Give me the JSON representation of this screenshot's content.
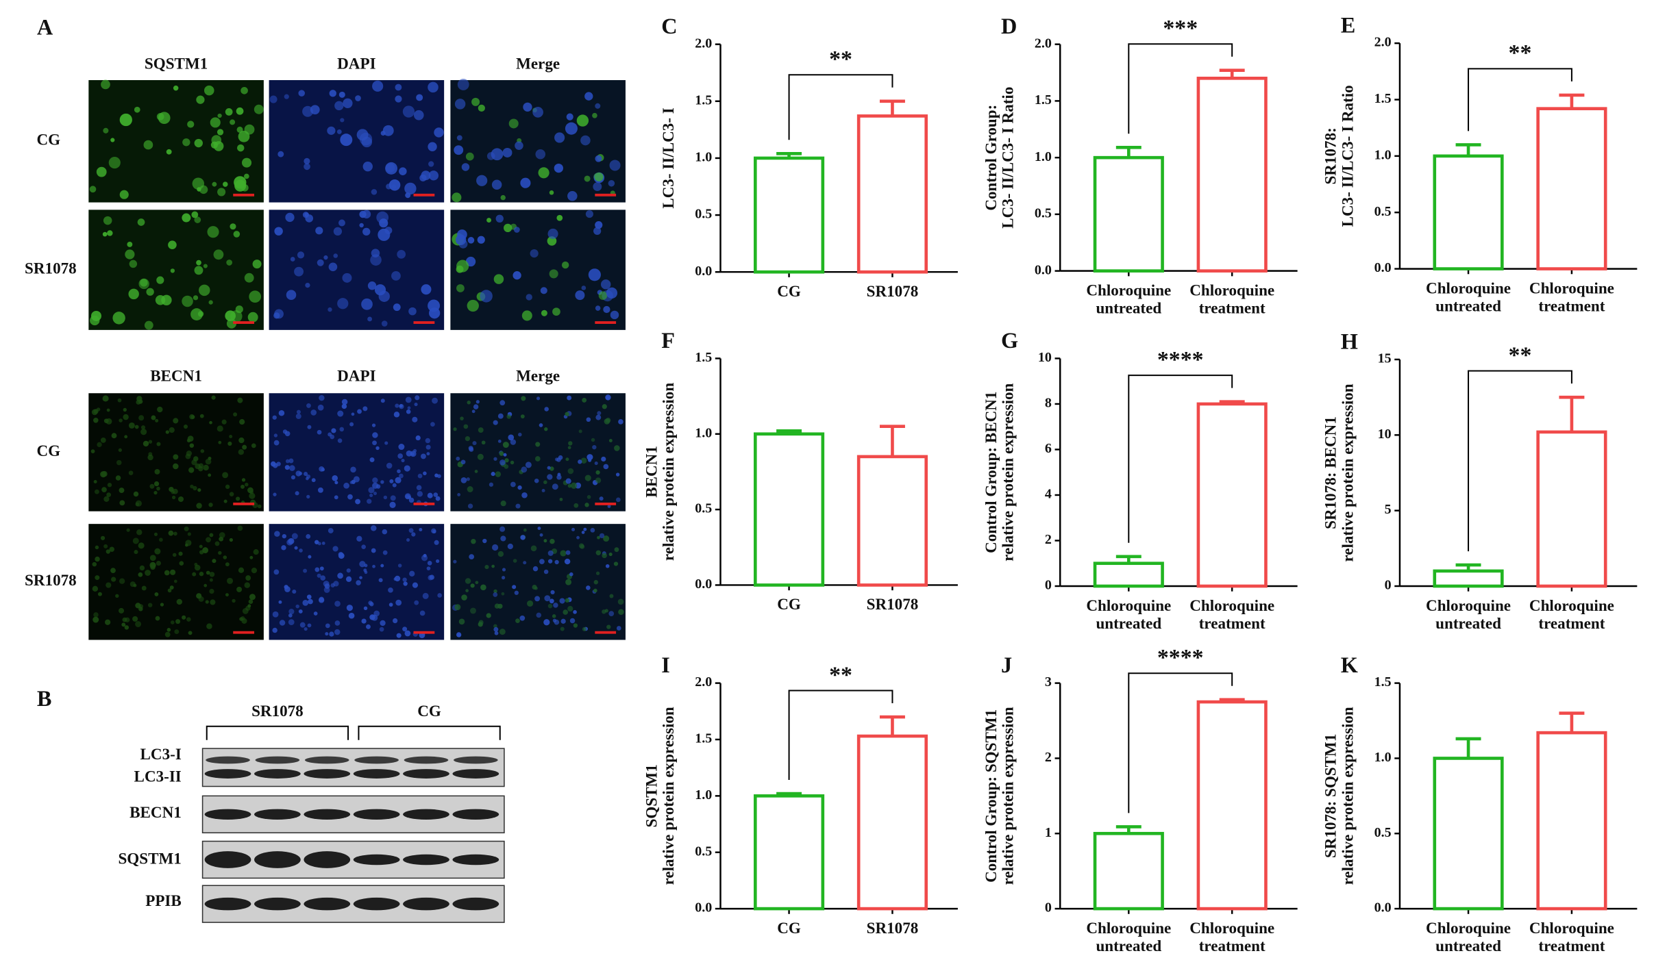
{
  "panel_a": {
    "label": "A",
    "blocks": [
      {
        "columns": [
          "SQSTM1",
          "DAPI",
          "Merge"
        ],
        "rows": [
          "CG",
          "SR1078"
        ]
      },
      {
        "columns": [
          "BECN1",
          "DAPI",
          "Merge"
        ],
        "rows": [
          "CG",
          "SR1078"
        ]
      }
    ]
  },
  "panel_b": {
    "label": "B",
    "groups": [
      "SR1078",
      "CG"
    ],
    "rows": [
      "LC3-I",
      "LC3-II",
      "BECN1",
      "SQSTM1",
      "PPIB"
    ]
  },
  "chart_data": [
    {
      "type": "bar",
      "panel_label": "C",
      "ylabel": [
        "LC3- II/LC3- I"
      ],
      "categories": [
        "CG",
        "SR1078"
      ],
      "values": [
        1.0,
        1.37
      ],
      "errors": [
        0.04,
        0.13
      ],
      "colors": [
        "#22b522",
        "#f04a4a"
      ],
      "ylim": [
        0,
        2
      ],
      "yticks": [
        {
          "value": 0,
          "label": "0.0"
        },
        {
          "value": 0.5,
          "label": "0.5"
        },
        {
          "value": 1,
          "label": "1.0"
        },
        {
          "value": 1.5,
          "label": "1.5"
        },
        {
          "value": 2,
          "label": "2.0"
        }
      ],
      "significance": "**"
    },
    {
      "type": "bar",
      "panel_label": "D",
      "ylabel": [
        "Control Group:",
        "LC3- II/LC3- I Ratio"
      ],
      "categories": [
        "Chloroquine untreated",
        "Chloroquine treatment"
      ],
      "values": [
        1.0,
        1.7
      ],
      "errors": [
        0.09,
        0.07
      ],
      "colors": [
        "#22b522",
        "#f04a4a"
      ],
      "ylim": [
        0,
        2
      ],
      "yticks": [
        {
          "value": 0,
          "label": "0.0"
        },
        {
          "value": 0.5,
          "label": "0.5"
        },
        {
          "value": 1,
          "label": "1.0"
        },
        {
          "value": 1.5,
          "label": "1.5"
        },
        {
          "value": 2,
          "label": "2.0"
        }
      ],
      "significance": "***"
    },
    {
      "type": "bar",
      "panel_label": "E",
      "ylabel": [
        "SR1078:",
        "LC3- II/LC3- I Ratio"
      ],
      "categories": [
        "Chloroquine untreated",
        "Chloroquine treatment"
      ],
      "values": [
        1.0,
        1.42
      ],
      "errors": [
        0.1,
        0.12
      ],
      "colors": [
        "#22b522",
        "#f04a4a"
      ],
      "ylim": [
        0,
        2
      ],
      "yticks": [
        {
          "value": 0,
          "label": "0.0"
        },
        {
          "value": 0.5,
          "label": "0.5"
        },
        {
          "value": 1,
          "label": "1.0"
        },
        {
          "value": 1.5,
          "label": "1.5"
        },
        {
          "value": 2,
          "label": "2.0"
        }
      ],
      "significance": "**"
    },
    {
      "type": "bar",
      "panel_label": "F",
      "ylabel": [
        "BECN1",
        "relative protein expression"
      ],
      "categories": [
        "CG",
        "SR1078"
      ],
      "values": [
        1.0,
        0.85
      ],
      "errors": [
        0.02,
        0.2
      ],
      "colors": [
        "#22b522",
        "#f04a4a"
      ],
      "ylim": [
        0,
        1.5
      ],
      "yticks": [
        {
          "value": 0,
          "label": "0.0"
        },
        {
          "value": 0.5,
          "label": "0.5"
        },
        {
          "value": 1,
          "label": "1.0"
        },
        {
          "value": 1.5,
          "label": "1.5"
        }
      ]
    },
    {
      "type": "bar",
      "panel_label": "G",
      "ylabel": [
        "Control Group: BECN1",
        "relative protein expression"
      ],
      "categories": [
        "Chloroquine untreated",
        "Chloroquine treatment"
      ],
      "values": [
        1.0,
        8.0
      ],
      "errors": [
        0.3,
        0.1
      ],
      "colors": [
        "#22b522",
        "#f04a4a"
      ],
      "ylim": [
        0,
        10
      ],
      "yticks": [
        0,
        2,
        4,
        6,
        8,
        10
      ],
      "significance": "****"
    },
    {
      "type": "bar",
      "panel_label": "H",
      "ylabel": [
        "SR1078: BECN1",
        "relative protein expression"
      ],
      "categories": [
        "Chloroquine untreated",
        "Chloroquine treatment"
      ],
      "values": [
        1.0,
        10.2
      ],
      "errors": [
        0.4,
        2.3
      ],
      "colors": [
        "#22b522",
        "#f04a4a"
      ],
      "ylim": [
        0,
        15
      ],
      "yticks": [
        0,
        5,
        10,
        15
      ],
      "significance": "**"
    },
    {
      "type": "bar",
      "panel_label": "I",
      "ylabel": [
        "SQSTM1",
        "relative protein expression"
      ],
      "categories": [
        "CG",
        "SR1078"
      ],
      "values": [
        1.0,
        1.53
      ],
      "errors": [
        0.02,
        0.17
      ],
      "colors": [
        "#22b522",
        "#f04a4a"
      ],
      "ylim": [
        0,
        2
      ],
      "yticks": [
        {
          "value": 0,
          "label": "0.0"
        },
        {
          "value": 0.5,
          "label": "0.5"
        },
        {
          "value": 1,
          "label": "1.0"
        },
        {
          "value": 1.5,
          "label": "1.5"
        },
        {
          "value": 2,
          "label": "2.0"
        }
      ],
      "significance": "**"
    },
    {
      "type": "bar",
      "panel_label": "J",
      "ylabel": [
        "Control Group: SQSTM1",
        "relative protein expression"
      ],
      "categories": [
        "Chloroquine untreated",
        "Chloroquine treatment"
      ],
      "values": [
        1.0,
        2.75
      ],
      "errors": [
        0.09,
        0.03
      ],
      "colors": [
        "#22b522",
        "#f04a4a"
      ],
      "ylim": [
        0,
        3
      ],
      "yticks": [
        0,
        1,
        2,
        3
      ],
      "significance": "****"
    },
    {
      "type": "bar",
      "panel_label": "K",
      "ylabel": [
        "SR1078: SQSTM1",
        "relative protein expression"
      ],
      "categories": [
        "Chloroquine untreated",
        "Chloroquine treatment"
      ],
      "values": [
        1.0,
        1.17
      ],
      "errors": [
        0.13,
        0.13
      ],
      "colors": [
        "#22b522",
        "#f04a4a"
      ],
      "ylim": [
        0,
        1.5
      ],
      "yticks": [
        {
          "value": 0,
          "label": "0.0"
        },
        {
          "value": 0.5,
          "label": "0.5"
        },
        {
          "value": 1,
          "label": "1.0"
        },
        {
          "value": 1.5,
          "label": "1.5"
        }
      ]
    }
  ]
}
